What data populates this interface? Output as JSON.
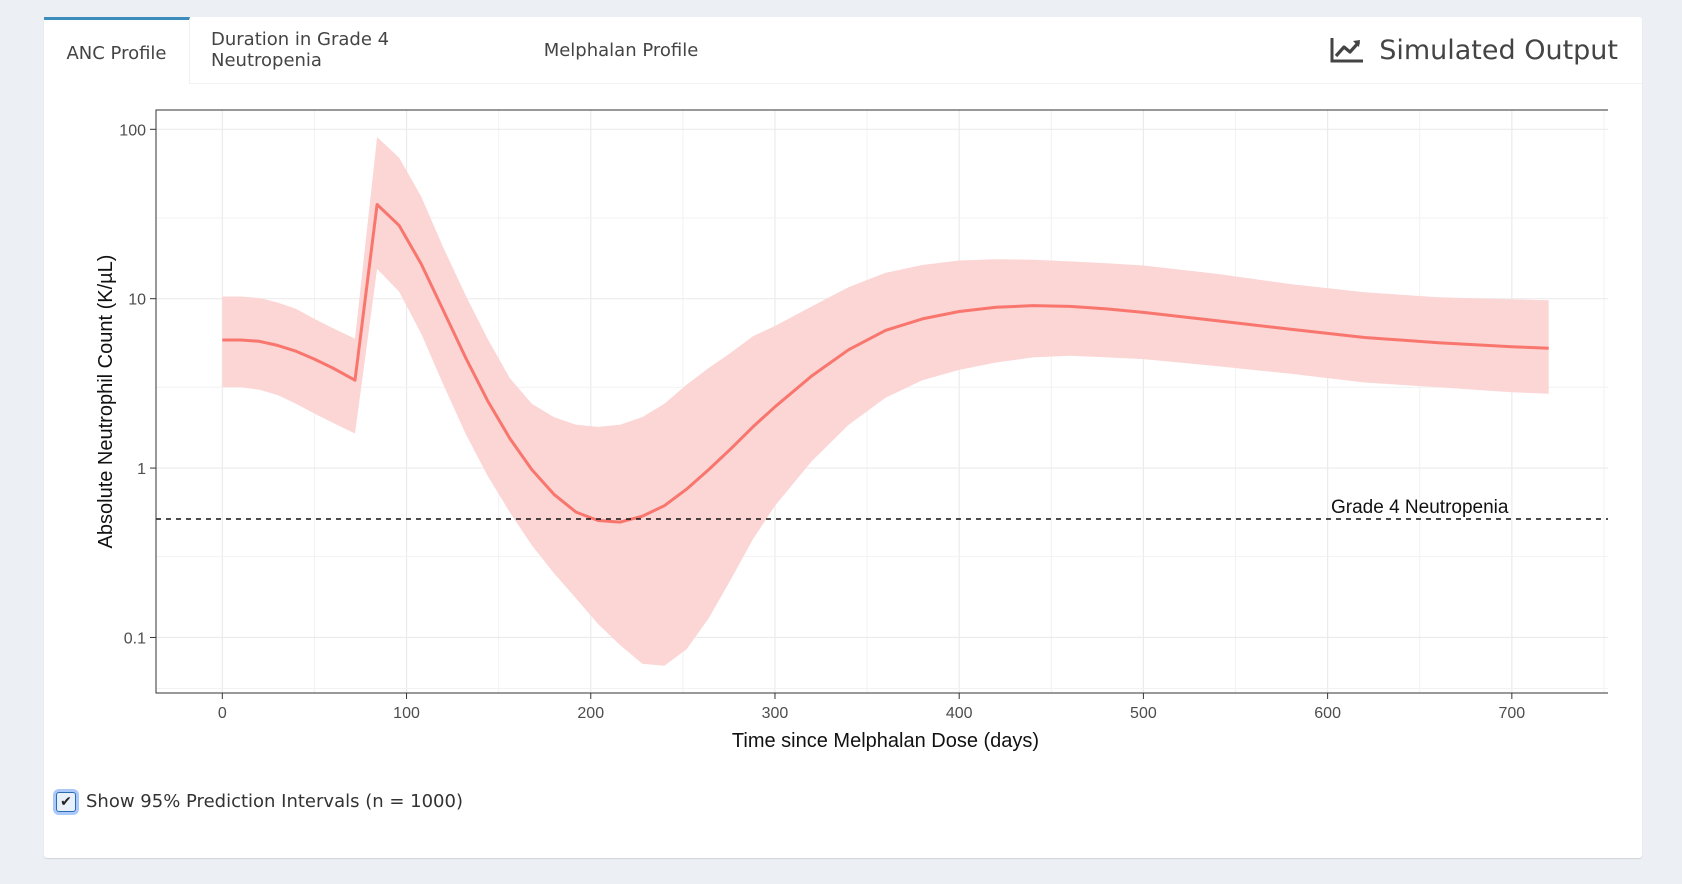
{
  "tabs": [
    {
      "label": "ANC Profile",
      "active": true
    },
    {
      "label": "Duration in Grade 4 Neutropenia",
      "active": false
    },
    {
      "label": "Melphalan Profile",
      "active": false
    }
  ],
  "box_title": "Simulated Output",
  "box_title_icon": "line-chart-icon",
  "checkbox": {
    "label": "Show 95% Prediction Intervals (n = 1000)",
    "checked": true
  },
  "colors": {
    "line": "#f8766d",
    "ribbon": "#fcd5d5",
    "tab_accent": "#3c8dbc"
  },
  "chart_data": {
    "type": "line",
    "title": "",
    "xlabel": "Time since Melphalan Dose (days)",
    "ylabel": "Absolute Neutrophil Count (K/µL)",
    "xlim": [
      -36,
      756
    ],
    "ylim": [
      0.047,
      130
    ],
    "y_scale": "log",
    "x_ticks": [
      0,
      100,
      200,
      300,
      400,
      500,
      600,
      700
    ],
    "y_ticks": [
      0.1,
      1,
      10,
      100
    ],
    "y_tick_labels": [
      "0.1",
      "1",
      "10",
      "100"
    ],
    "grid": true,
    "x": [
      0,
      10,
      20,
      30,
      40,
      50,
      60,
      72,
      84,
      96,
      108,
      120,
      132,
      144,
      156,
      168,
      180,
      192,
      204,
      216,
      228,
      240,
      252,
      264,
      276,
      288,
      300,
      320,
      340,
      360,
      380,
      400,
      420,
      440,
      460,
      480,
      500,
      540,
      580,
      620,
      660,
      700,
      720
    ],
    "series": [
      {
        "values": [
          5.7,
          5.7,
          5.6,
          5.3,
          4.9,
          4.4,
          3.9,
          3.3,
          36,
          27,
          16,
          8.5,
          4.5,
          2.5,
          1.5,
          0.98,
          0.7,
          0.55,
          0.49,
          0.48,
          0.52,
          0.6,
          0.75,
          0.98,
          1.3,
          1.75,
          2.3,
          3.5,
          5.0,
          6.5,
          7.6,
          8.4,
          8.9,
          9.1,
          9.0,
          8.7,
          8.3,
          7.4,
          6.6,
          5.9,
          5.5,
          5.2,
          5.1
        ],
        "lower": [
          3.0,
          3.0,
          2.9,
          2.7,
          2.4,
          2.1,
          1.85,
          1.6,
          15,
          11,
          6.2,
          3.1,
          1.6,
          0.9,
          0.55,
          0.35,
          0.24,
          0.17,
          0.12,
          0.09,
          0.07,
          0.068,
          0.085,
          0.13,
          0.22,
          0.38,
          0.6,
          1.1,
          1.8,
          2.6,
          3.3,
          3.8,
          4.2,
          4.5,
          4.6,
          4.5,
          4.4,
          4.0,
          3.6,
          3.2,
          3.0,
          2.8,
          2.75
        ],
        "upper": [
          10.3,
          10.3,
          10.1,
          9.5,
          8.7,
          7.6,
          6.7,
          5.8,
          90,
          68,
          40,
          20,
          10.5,
          5.8,
          3.4,
          2.4,
          2.0,
          1.8,
          1.75,
          1.8,
          2.0,
          2.4,
          3.1,
          3.9,
          4.8,
          6.0,
          6.9,
          9.0,
          11.7,
          14.2,
          15.8,
          16.8,
          17.1,
          17.0,
          16.6,
          16.2,
          15.7,
          14.0,
          12.2,
          10.9,
          10.2,
          9.9,
          9.8
        ]
      }
    ],
    "reference_line": {
      "y": 0.5,
      "label": "Grade 4 Neutropenia",
      "style": "dashed"
    }
  }
}
